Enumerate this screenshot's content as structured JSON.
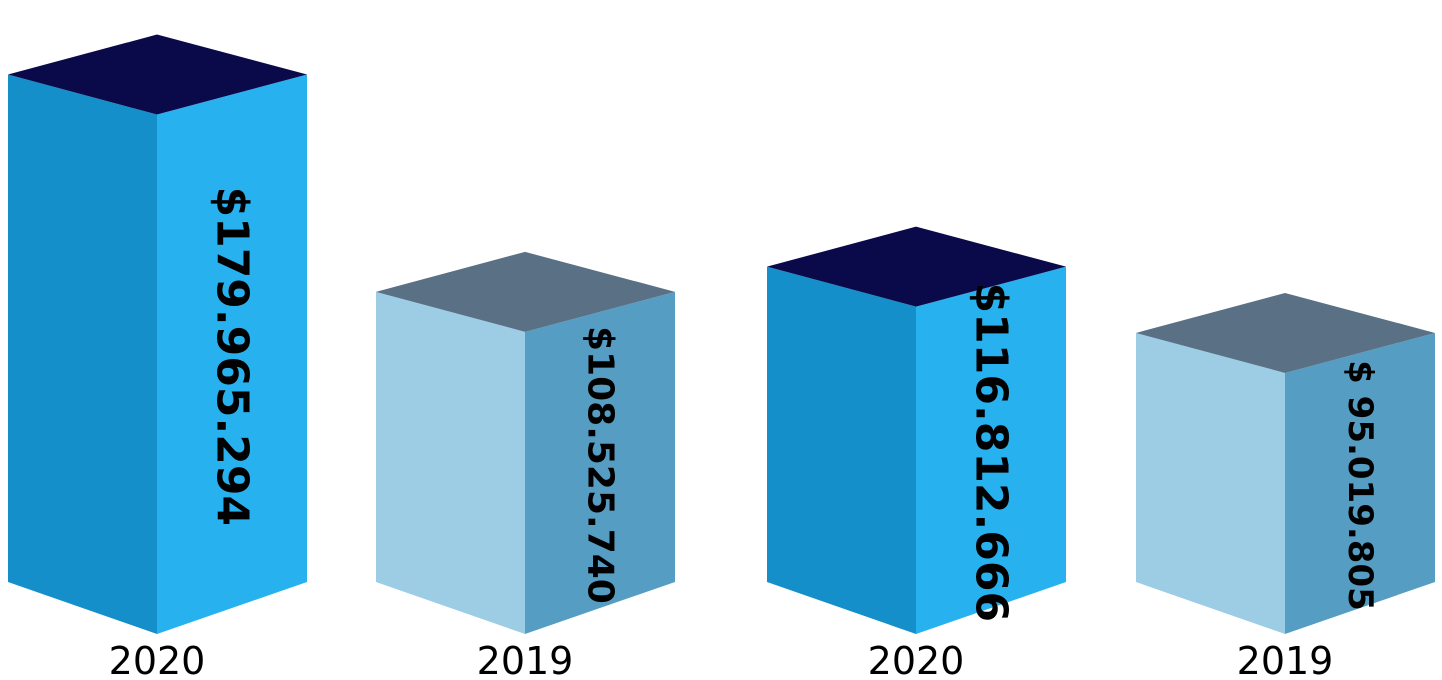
{
  "chart_data": {
    "type": "bar",
    "style": "3d-box",
    "categories": [
      "2020",
      "2019",
      "2020",
      "2019"
    ],
    "values": [
      179965294,
      108525740,
      116812666,
      95019805
    ],
    "value_labels": [
      "$179.965.294",
      "$108.525.740",
      "$116.812.666",
      "$ 95.019.805"
    ],
    "value_label_orientation": "vertical",
    "ylim": [
      0,
      190000000
    ],
    "xlabel": "",
    "ylabel": "",
    "grid": false,
    "legend": "none",
    "colors": [
      {
        "front": "#158fca",
        "side": "#27b1ef",
        "top": "#0a0a4b"
      },
      {
        "front": "#9ccde5",
        "side": "#559dc2",
        "top": "#5a7085"
      },
      {
        "front": "#158fca",
        "side": "#27b1ef",
        "top": "#0a0a4b"
      },
      {
        "front": "#9ccde5",
        "side": "#559dc2",
        "top": "#5a7085"
      }
    ]
  }
}
